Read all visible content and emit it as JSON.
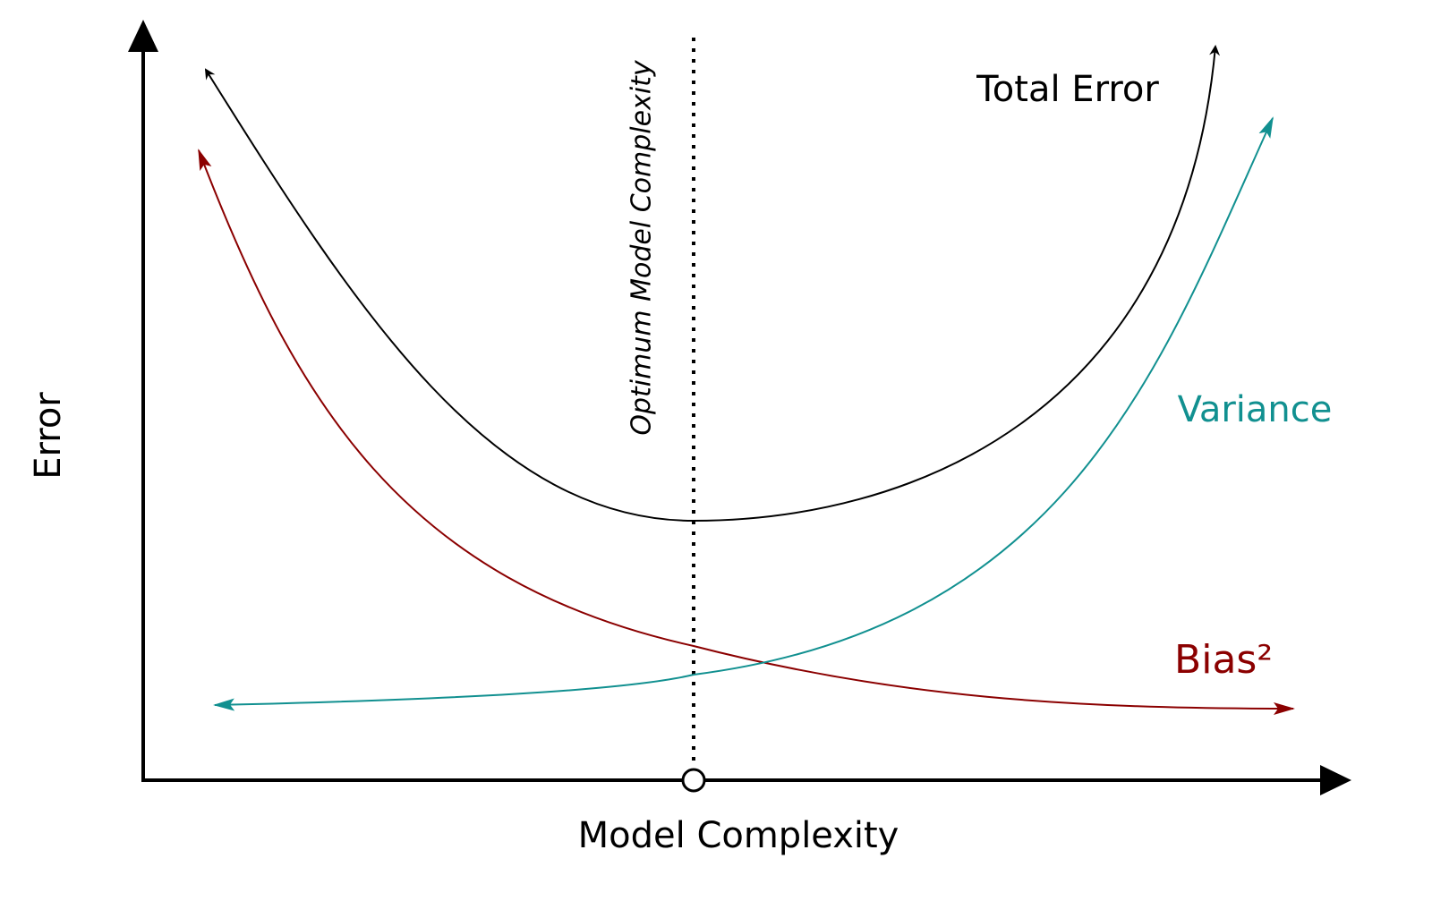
{
  "axes": {
    "y_label": "Error",
    "x_label": "Model Complexity"
  },
  "curves": [
    {
      "label": "Total Error"
    },
    {
      "label": "Variance"
    },
    {
      "label": "Bias²"
    }
  ],
  "optimum": {
    "label": "Optimum Model Complexity"
  }
}
